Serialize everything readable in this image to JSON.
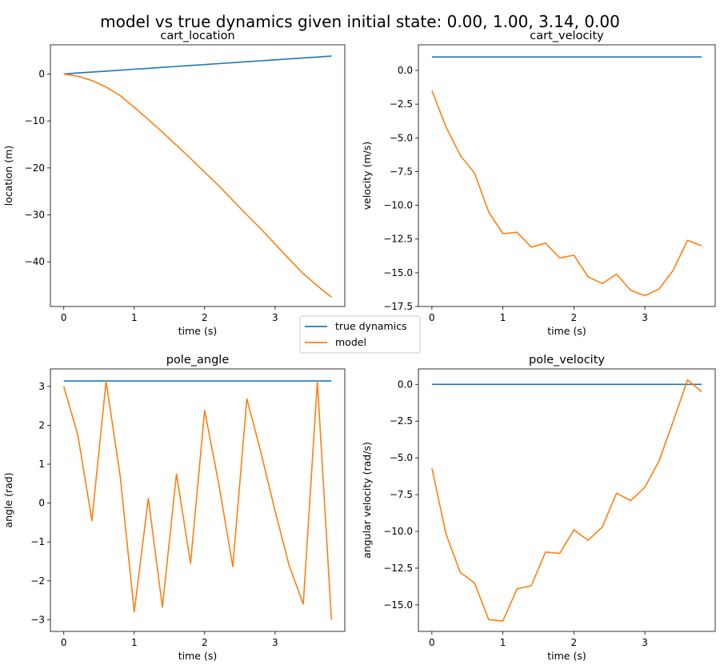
{
  "figure_title": "model vs true dynamics given initial state: 0.00, 1.00, 3.14, 0.00",
  "legend": [
    "true dynamics",
    "model"
  ],
  "colors": {
    "true_dynamics": "#1f77b4",
    "model": "#ff7f0e"
  },
  "chart_data": [
    {
      "type": "line",
      "title": "cart_location",
      "xlabel": "time (s)",
      "ylabel": "location (m)",
      "xlim": [
        -0.19,
        3.99
      ],
      "ylim": [
        -49.5,
        6.2
      ],
      "xticks": [
        0,
        1,
        2,
        3
      ],
      "yticks": [
        0,
        -10,
        -20,
        -30,
        -40
      ],
      "ytick_labels": [
        "0",
        "−10",
        "−20",
        "−30",
        "−40"
      ],
      "x": [
        0.0,
        0.2,
        0.4,
        0.6,
        0.8,
        1.0,
        1.2,
        1.4,
        1.6,
        1.8,
        2.0,
        2.2,
        2.4,
        2.6,
        2.8,
        3.0,
        3.2,
        3.4,
        3.6,
        3.8
      ],
      "series": [
        {
          "name": "true dynamics",
          "values": [
            0.0,
            0.2,
            0.4,
            0.6,
            0.8,
            1.0,
            1.2,
            1.4,
            1.6,
            1.8,
            2.0,
            2.2,
            2.4,
            2.6,
            2.8,
            3.0,
            3.2,
            3.4,
            3.6,
            3.8
          ]
        },
        {
          "name": "model",
          "values": [
            0.0,
            -0.5,
            -1.4,
            -2.8,
            -4.6,
            -7.1,
            -9.7,
            -12.4,
            -15.2,
            -18.0,
            -20.9,
            -23.8,
            -26.9,
            -30.0,
            -33.0,
            -36.2,
            -39.4,
            -42.5,
            -45.1,
            -47.5
          ]
        }
      ]
    },
    {
      "type": "line",
      "title": "cart_velocity",
      "xlabel": "time (s)",
      "ylabel": "velocity (m/s)",
      "xlim": [
        -0.19,
        3.99
      ],
      "ylim": [
        -17.5,
        1.9
      ],
      "xticks": [
        0,
        1,
        2,
        3
      ],
      "yticks": [
        0,
        -2.5,
        -5,
        -7.5,
        -10,
        -12.5,
        -15,
        -17.5
      ],
      "ytick_labels": [
        "0.0",
        "−2.5",
        "−5.0",
        "−7.5",
        "−10.0",
        "−12.5",
        "−15.0",
        "−17.5"
      ],
      "x": [
        0.0,
        0.2,
        0.4,
        0.6,
        0.8,
        1.0,
        1.2,
        1.4,
        1.6,
        1.8,
        2.0,
        2.2,
        2.4,
        2.6,
        2.8,
        3.0,
        3.2,
        3.4,
        3.6,
        3.8
      ],
      "series": [
        {
          "name": "true dynamics",
          "values": [
            1,
            1,
            1,
            1,
            1,
            1,
            1,
            1,
            1,
            1,
            1,
            1,
            1,
            1,
            1,
            1,
            1,
            1,
            1,
            1
          ]
        },
        {
          "name": "model",
          "values": [
            -1.5,
            -4.2,
            -6.3,
            -7.6,
            -10.5,
            -12.1,
            -12.0,
            -13.1,
            -12.8,
            -13.9,
            -13.7,
            -15.3,
            -15.8,
            -15.1,
            -16.3,
            -16.7,
            -16.2,
            -14.8,
            -12.6,
            -13.0
          ]
        }
      ]
    },
    {
      "type": "line",
      "title": "pole_angle",
      "xlabel": "time (s)",
      "ylabel": "angle (rad)",
      "xlim": [
        -0.19,
        3.99
      ],
      "ylim": [
        -3.3,
        3.45
      ],
      "xticks": [
        0,
        1,
        2,
        3
      ],
      "yticks": [
        3,
        2,
        1,
        0,
        -1,
        -2,
        -3
      ],
      "ytick_labels": [
        "3",
        "2",
        "1",
        "0",
        "−1",
        "−2",
        "−3"
      ],
      "x": [
        0.0,
        0.2,
        0.4,
        0.6,
        0.8,
        1.0,
        1.2,
        1.4,
        1.6,
        1.8,
        2.0,
        2.2,
        2.4,
        2.6,
        2.8,
        3.0,
        3.2,
        3.4,
        3.6,
        3.8
      ],
      "series": [
        {
          "name": "true dynamics",
          "values": [
            3.14,
            3.14,
            3.14,
            3.14,
            3.14,
            3.14,
            3.14,
            3.14,
            3.14,
            3.14,
            3.14,
            3.14,
            3.14,
            3.14,
            3.14,
            3.14,
            3.14,
            3.14,
            3.14,
            3.14
          ]
        },
        {
          "name": "model",
          "values": [
            3.0,
            1.75,
            -0.45,
            3.13,
            0.7,
            -2.8,
            0.12,
            -2.68,
            0.75,
            -1.55,
            2.38,
            0.5,
            -1.63,
            2.68,
            1.3,
            -0.2,
            -1.6,
            -2.6,
            3.13,
            -3.0
          ]
        }
      ]
    },
    {
      "type": "line",
      "title": "pole_velocity",
      "xlabel": "time (s)",
      "ylabel": "angular velocity (rad/s)",
      "xlim": [
        -0.19,
        3.99
      ],
      "ylim": [
        -16.8,
        1.05
      ],
      "xticks": [
        0,
        1,
        2,
        3
      ],
      "yticks": [
        0,
        -2.5,
        -5,
        -7.5,
        -10,
        -12.5,
        -15
      ],
      "ytick_labels": [
        "0.0",
        "−2.5",
        "−5.0",
        "−7.5",
        "−10.0",
        "−12.5",
        "−15.0"
      ],
      "x": [
        0.0,
        0.2,
        0.4,
        0.6,
        0.8,
        1.0,
        1.2,
        1.4,
        1.6,
        1.8,
        2.0,
        2.2,
        2.4,
        2.6,
        2.8,
        3.0,
        3.2,
        3.4,
        3.6,
        3.8
      ],
      "series": [
        {
          "name": "true dynamics",
          "values": [
            0,
            0,
            0,
            0,
            0,
            0,
            0,
            0,
            0,
            0,
            0,
            0,
            0,
            0,
            0,
            0,
            0,
            0,
            0,
            0
          ]
        },
        {
          "name": "model",
          "values": [
            -5.7,
            -10.2,
            -12.8,
            -13.5,
            -16.0,
            -16.1,
            -13.9,
            -13.7,
            -11.4,
            -11.5,
            -9.9,
            -10.6,
            -9.7,
            -7.4,
            -7.9,
            -7.0,
            -5.2,
            -2.5,
            0.3,
            -0.5
          ]
        }
      ]
    }
  ]
}
